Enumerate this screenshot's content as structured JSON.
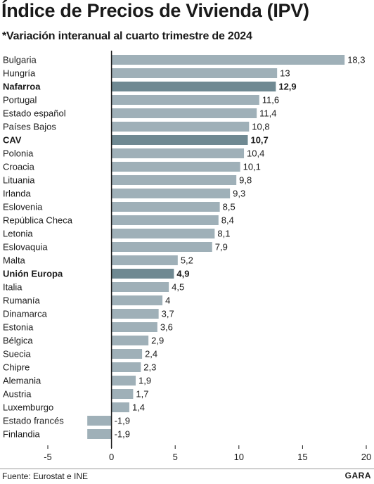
{
  "header": {
    "title": "Índice de Precios de Vivienda (IPV)",
    "subtitle": "*Variación interanual al cuarto trimestre de 2024"
  },
  "footer": {
    "source": "Fuente: Eurostat e INE",
    "brand": "GARA"
  },
  "colors": {
    "bar": "#9fb0b8",
    "bar_highlight": "#6f8992",
    "axis": "#1a1a1a",
    "text": "#1a1a1a"
  },
  "chart_data": {
    "type": "bar",
    "orientation": "horizontal",
    "categories": [
      "Bulgaria",
      "Hungría",
      "Nafarroa",
      "Portugal",
      "Estado español",
      "Países Bajos",
      "CAV",
      "Polonia",
      "Croacia",
      "Lituania",
      "Irlanda",
      "Eslovenia",
      "República Checa",
      "Letonia",
      "Eslovaquia",
      "Malta",
      "Unión Europa",
      "Italia",
      "Rumanía",
      "Dinamarca",
      "Estonia",
      "Bélgica",
      "Suecia",
      "Chipre",
      "Alemania",
      "Austria",
      "Luxemburgo",
      "Estado francés",
      "Finlandia"
    ],
    "values": [
      18.3,
      13,
      12.9,
      11.6,
      11.4,
      10.8,
      10.7,
      10.4,
      10.1,
      9.8,
      9.3,
      8.5,
      8.4,
      8.1,
      7.9,
      5.2,
      4.9,
      4.5,
      4,
      3.7,
      3.6,
      2.9,
      2.4,
      2.3,
      1.9,
      1.7,
      1.4,
      -1.9,
      -1.9
    ],
    "value_labels": [
      "18,3",
      "13",
      "12,9",
      "11,6",
      "11,4",
      "10,8",
      "10,7",
      "10,4",
      "10,1",
      "9,8",
      "9,3",
      "8,5",
      "8,4",
      "8,1",
      "7,9",
      "5,2",
      "4,9",
      "4,5",
      "4",
      "3,7",
      "3,6",
      "2,9",
      "2,4",
      "2,3",
      "1,9",
      "1,7",
      "1,4",
      "-1,9",
      "-1,9"
    ],
    "highlighted": [
      "Nafarroa",
      "CAV",
      "Unión Europa"
    ],
    "xlim": [
      -5,
      20
    ],
    "xticks": [
      -5,
      0,
      5,
      10,
      15,
      20
    ],
    "xtick_labels": [
      "-5",
      "0",
      "5",
      "10",
      "15",
      "20"
    ],
    "grid": false,
    "legend": "none"
  }
}
